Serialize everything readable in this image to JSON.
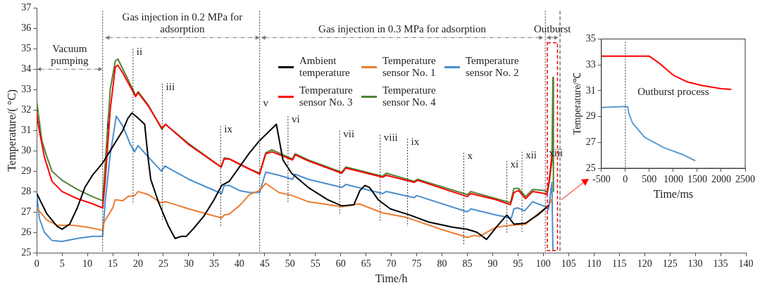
{
  "chart_data": [
    {
      "type": "line",
      "xlabel": "Time/h",
      "ylabel": "Temperature/( °C)",
      "xlim": [
        0,
        140
      ],
      "xticks": [
        0,
        5,
        10,
        15,
        20,
        25,
        30,
        35,
        40,
        45,
        50,
        55,
        60,
        65,
        70,
        75,
        80,
        85,
        90,
        95,
        100,
        105,
        110,
        115,
        120,
        125,
        130,
        135,
        140
      ],
      "ylim": [
        25,
        37
      ],
      "yticks": [
        25,
        26,
        27,
        28,
        29,
        30,
        31,
        32,
        33,
        34,
        35,
        36,
        37
      ],
      "grid": false,
      "legend": "top",
      "line_style": "solid",
      "series": [
        {
          "name": "Ambient temperature",
          "color": "#000000",
          "x": [
            0,
            2,
            4,
            5,
            6.5,
            8,
            9.5,
            11,
            13,
            15,
            17,
            18,
            18.8,
            20,
            21.3,
            22,
            22.5,
            24,
            26,
            27.3,
            28.5,
            29.5,
            31,
            33,
            35,
            36.5,
            38,
            40,
            42,
            44,
            47.3,
            48.6,
            50.3,
            53.6,
            57.4,
            60.2,
            62.6,
            63.8,
            64.8,
            65.7,
            67.4,
            69.8,
            73.6,
            77.4,
            82.1,
            85,
            86.9,
            88.8,
            90.7,
            92.8,
            94.2,
            96.5,
            98.9,
            101
          ],
          "values": [
            27.9,
            26.9,
            26.3,
            26.15,
            26.4,
            27.2,
            28.2,
            28.8,
            29.4,
            30.2,
            31.0,
            31.6,
            31.85,
            31.6,
            31.3,
            29.6,
            28.6,
            27.5,
            26.3,
            25.7,
            25.8,
            25.8,
            26.2,
            26.8,
            27.6,
            28.3,
            28.5,
            29.2,
            29.9,
            30.5,
            31.3,
            29.55,
            28.9,
            28.2,
            27.6,
            27.3,
            27.35,
            28.05,
            28.3,
            28.2,
            27.6,
            27.15,
            26.85,
            26.5,
            26.25,
            26.15,
            26.0,
            25.65,
            26.25,
            26.85,
            26.4,
            26.45,
            26.85,
            27.3
          ]
        },
        {
          "name": "Temperature sensor No. 1",
          "color": "#ed7d31",
          "x": [
            0,
            2,
            4,
            7,
            10,
            13,
            13.3,
            15,
            15.5,
            17,
            18,
            19.3,
            20,
            22,
            24.5,
            25.5,
            30,
            36.5,
            37,
            38,
            40,
            42,
            44,
            45.2,
            47.8,
            50.5,
            53.6,
            60.3,
            63.6,
            68.3,
            72.6,
            74.5,
            79.8,
            85,
            86.4,
            87.4,
            88.8,
            90.7,
            93.7,
            96.5,
            98.9,
            101.2,
            101.7
          ],
          "values": [
            27.2,
            26.6,
            26.35,
            26.35,
            26.25,
            26.1,
            26.5,
            27.2,
            27.6,
            27.55,
            27.75,
            27.8,
            28.0,
            27.85,
            27.45,
            27.5,
            27.15,
            26.7,
            26.85,
            26.9,
            27.3,
            27.85,
            28.05,
            28.4,
            27.95,
            27.8,
            27.5,
            27.25,
            27.4,
            26.95,
            26.75,
            26.6,
            26.15,
            25.75,
            25.85,
            25.8,
            26.0,
            26.25,
            26.35,
            26.4,
            26.9,
            27.35,
            27.65
          ]
        },
        {
          "name": "Temperature sensor No. 2",
          "color": "#4a8fcf",
          "x": [
            0,
            0.5,
            1.5,
            3,
            5,
            8,
            11,
            13,
            13.5,
            14.5,
            15.7,
            17,
            18.5,
            19.3,
            20,
            22,
            24.6,
            25.3,
            30,
            36.5,
            37,
            38,
            40,
            42,
            44,
            45.2,
            47.8,
            50.5,
            51,
            53.6,
            60.3,
            61,
            68.3,
            69,
            74.5,
            75,
            85,
            85.7,
            90.7,
            93.7,
            94.2,
            94.9,
            96.3,
            97.9,
            100.5,
            101,
            101.7,
            101.9
          ],
          "values": [
            27.9,
            26.7,
            26.0,
            25.6,
            25.55,
            25.7,
            25.8,
            25.8,
            27.5,
            29.8,
            31.7,
            31.2,
            30.3,
            29.95,
            30.25,
            29.7,
            29.0,
            29.25,
            28.6,
            27.9,
            28.3,
            28.3,
            28.05,
            27.95,
            27.95,
            28.95,
            28.8,
            28.6,
            28.85,
            28.6,
            28.2,
            28.35,
            27.9,
            28.0,
            27.7,
            27.8,
            27.0,
            27.15,
            26.85,
            26.7,
            27.15,
            27.2,
            27.05,
            27.5,
            27.25,
            27.1,
            28.45,
            25.1
          ]
        },
        {
          "name": "Temperature sensor No. 3",
          "color": "#ff0000",
          "x": [
            0,
            0.5,
            1.5,
            3,
            5,
            8,
            11,
            13,
            13.5,
            14.5,
            15.5,
            16,
            17,
            19,
            19.5,
            20,
            22,
            24.7,
            25.4,
            30,
            36.4,
            37,
            38,
            42,
            44,
            45.2,
            46.4,
            50,
            50.5,
            51,
            53.6,
            60.2,
            61,
            68.3,
            69,
            74.5,
            75.2,
            85,
            85.7,
            90.7,
            93.5,
            94.2,
            95.1,
            96.5,
            97.9,
            100.3,
            100.7,
            101.2,
            101.7
          ],
          "values": [
            31.8,
            31.0,
            29.7,
            28.5,
            28.0,
            27.65,
            27.4,
            27.2,
            28.5,
            32.0,
            34.1,
            34.2,
            33.8,
            32.9,
            32.65,
            32.85,
            32.2,
            31.1,
            31.3,
            30.3,
            29.2,
            29.6,
            29.6,
            29.1,
            28.85,
            29.85,
            29.95,
            29.6,
            29.55,
            29.8,
            29.5,
            28.9,
            29.15,
            28.7,
            28.8,
            28.45,
            28.55,
            27.75,
            27.9,
            27.6,
            27.35,
            27.95,
            28.05,
            27.65,
            28.0,
            27.9,
            27.85,
            28.6,
            29.8
          ]
        },
        {
          "name": "Temperature sensor No. 4",
          "color": "#548235",
          "x": [
            0,
            1,
            2,
            3,
            5,
            8,
            11,
            13,
            13.5,
            14.5,
            15.5,
            16,
            17,
            19,
            19.5,
            20,
            22,
            24.7,
            25.4,
            30,
            36.4,
            37,
            38,
            42,
            44,
            45.2,
            46.4,
            50,
            50.5,
            51,
            53.6,
            60.2,
            61,
            68.3,
            69,
            74.5,
            75.2,
            85,
            85.7,
            90.7,
            93.5,
            94.2,
            95.1,
            96.5,
            97.9,
            100.3,
            100.8,
            101.2,
            101.7,
            101.9,
            102
          ],
          "values": [
            32.4,
            30.5,
            29.7,
            29.0,
            28.55,
            28.1,
            27.75,
            27.55,
            29.3,
            33.0,
            34.4,
            34.5,
            34.0,
            33.0,
            32.7,
            32.9,
            32.25,
            31.05,
            31.3,
            30.35,
            29.2,
            29.65,
            29.6,
            29.1,
            28.9,
            29.9,
            30.05,
            29.65,
            29.6,
            29.85,
            29.55,
            28.95,
            29.2,
            28.75,
            28.9,
            28.5,
            28.6,
            27.85,
            28.0,
            27.65,
            27.45,
            28.15,
            28.15,
            27.75,
            28.1,
            28.05,
            27.95,
            28.5,
            29.5,
            33.6,
            28.0
          ]
        }
      ],
      "ref_lines": [
        {
          "axis": "x",
          "value": 103.3,
          "line_style": "dashed"
        },
        {
          "axis": "x",
          "value": 13,
          "label": "i",
          "line_style": "dotted"
        },
        {
          "axis": "x",
          "value": 19,
          "label": "ii",
          "line_style": "dotted"
        },
        {
          "axis": "x",
          "value": 24.8,
          "label": "iii",
          "line_style": "dotted"
        },
        {
          "axis": "x",
          "value": 36.3,
          "label": "ix",
          "line_style": "dotted"
        },
        {
          "axis": "x",
          "value": 44,
          "label": "v",
          "line_style": "dotted"
        },
        {
          "axis": "x",
          "value": 49.6,
          "label": "vi",
          "line_style": "dotted"
        },
        {
          "axis": "x",
          "value": 59.8,
          "label": "vii",
          "line_style": "dotted"
        },
        {
          "axis": "x",
          "value": 67.8,
          "label": "viii",
          "line_style": "dotted"
        },
        {
          "axis": "x",
          "value": 73.2,
          "label": "ix",
          "line_style": "dotted"
        },
        {
          "axis": "x",
          "value": 84.3,
          "label": "x",
          "line_style": "dotted"
        },
        {
          "axis": "x",
          "value": 92.8,
          "label": "xi",
          "line_style": "dotted"
        },
        {
          "axis": "x",
          "value": 95.8,
          "label": "xii",
          "line_style": "dotted"
        },
        {
          "axis": "x",
          "value": 100.4,
          "label": "xiii",
          "line_style": "dotted"
        }
      ],
      "annotations": [
        "Vacuum pumping",
        "Gas injection in 0.2 MPa for adsorption",
        "Gas injection in 0.3 MPa for adsorption",
        "Outburst"
      ]
    },
    {
      "type": "line",
      "xlabel": "Time/ms",
      "ylabel": "Temperature/℃",
      "xlim": [
        -500,
        2500
      ],
      "xticks": [
        -500,
        0,
        500,
        1000,
        1500,
        2000,
        2500
      ],
      "ylim": [
        25,
        35
      ],
      "yticks": [
        25,
        27,
        29,
        31,
        33,
        35
      ],
      "grid": false,
      "line_style": "solid",
      "series": [
        {
          "color": "#ff0000",
          "x": [
            -500,
            0,
            500,
            700,
            1000,
            1300,
            1600,
            2000,
            2200
          ],
          "values": [
            33.67,
            33.67,
            33.67,
            33.15,
            32.2,
            31.67,
            31.4,
            31.15,
            31.1
          ]
        },
        {
          "color": "#5b9bd5",
          "x": [
            -500,
            0,
            50,
            70,
            150,
            400,
            800,
            1200,
            1450
          ],
          "values": [
            29.7,
            29.78,
            29.75,
            29.26,
            28.5,
            27.4,
            26.6,
            26.05,
            25.6
          ]
        }
      ],
      "ref_lines": [
        {
          "axis": "x",
          "value": 0,
          "line_style": "dotted"
        }
      ],
      "annotations": [
        "Outburst process"
      ]
    }
  ]
}
